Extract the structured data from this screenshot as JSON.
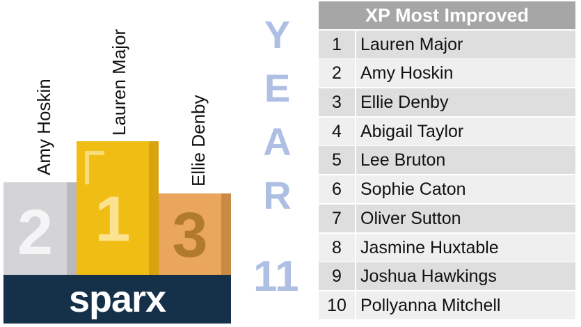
{
  "podium": [
    {
      "place": "2",
      "name": "Amy Hoskin"
    },
    {
      "place": "1",
      "name": "Lauren Major"
    },
    {
      "place": "3",
      "name": "Ellie Denby"
    }
  ],
  "brand": "sparx",
  "year_label": "YEAR",
  "year_number": "11",
  "table": {
    "title": "XP Most Improved",
    "rows": [
      [
        "1",
        "Lauren Major"
      ],
      [
        "2",
        "Amy Hoskin"
      ],
      [
        "3",
        "Ellie Denby"
      ],
      [
        "4",
        "Abigail Taylor"
      ],
      [
        "5",
        "Lee Bruton"
      ],
      [
        "6",
        "Sophie Caton"
      ],
      [
        "7",
        "Oliver Sutton"
      ],
      [
        "8",
        "Jasmine Huxtable"
      ],
      [
        "9",
        "Joshua Hawkings"
      ],
      [
        "10",
        "Pollyanna Mitchell"
      ]
    ]
  }
}
